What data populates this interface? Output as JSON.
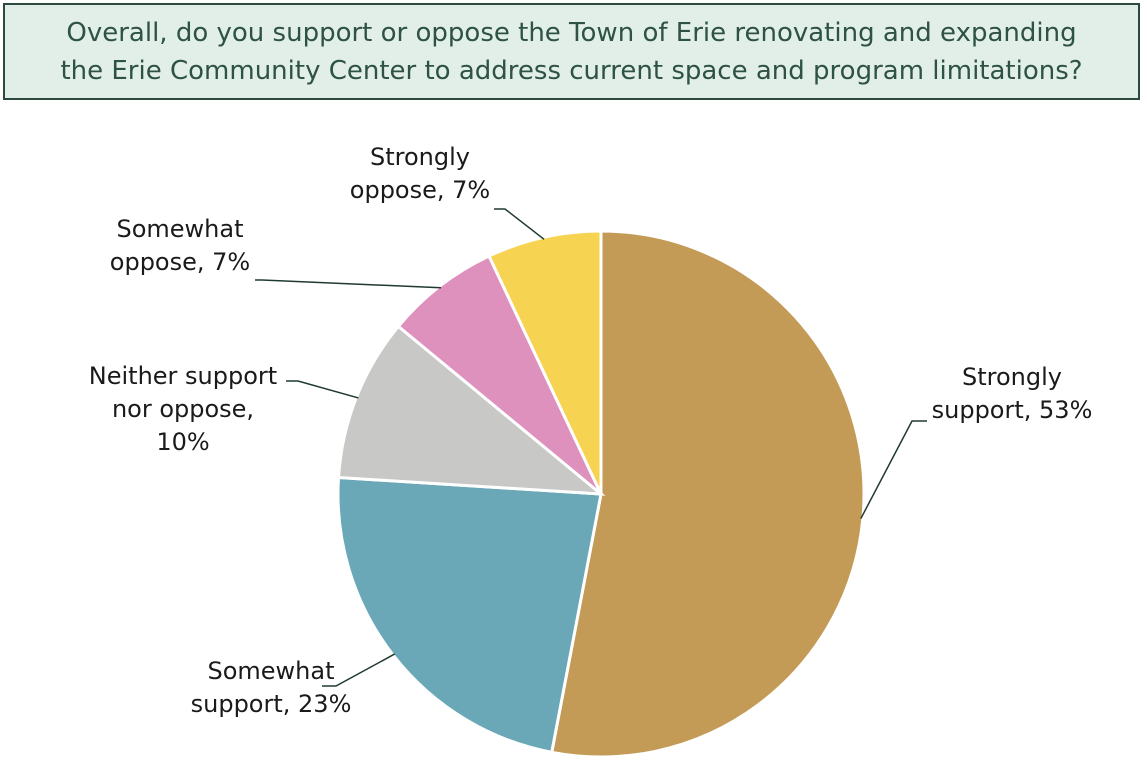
{
  "title": {
    "line1": "Overall, do you support or oppose the Town of Erie renovating and expanding",
    "line2": "the Erie Community Center to address current space and program limitations?"
  },
  "colors": {
    "title_bg": "#e2efe9",
    "title_border": "#2e4a3e",
    "title_text": "#2e5245"
  },
  "chart_data": {
    "type": "pie",
    "title": "Overall, do you support or oppose the Town of Erie renovating and expanding the Erie Community Center to address current space and program limitations?",
    "slices": [
      {
        "name": "Strongly support",
        "value": 53,
        "color": "#c39a56",
        "label_lines": [
          "Strongly",
          "support, 53%"
        ]
      },
      {
        "name": "Somewhat support",
        "value": 23,
        "color": "#6aa8b8",
        "label_lines": [
          "Somewhat",
          "support, 23%"
        ]
      },
      {
        "name": "Neither support nor oppose",
        "value": 10,
        "color": "#c8c9c6",
        "label_lines": [
          "Neither support",
          "nor oppose,",
          "10%"
        ]
      },
      {
        "name": "Somewhat oppose",
        "value": 7,
        "color": "#de91bd",
        "label_lines": [
          "Somewhat",
          "oppose, 7%"
        ]
      },
      {
        "name": "Strongly oppose",
        "value": 7,
        "color": "#f6d351",
        "label_lines": [
          "Strongly",
          "oppose, 7%"
        ]
      }
    ],
    "start": "12 o'clock",
    "direction": "clockwise",
    "legend": "none"
  }
}
